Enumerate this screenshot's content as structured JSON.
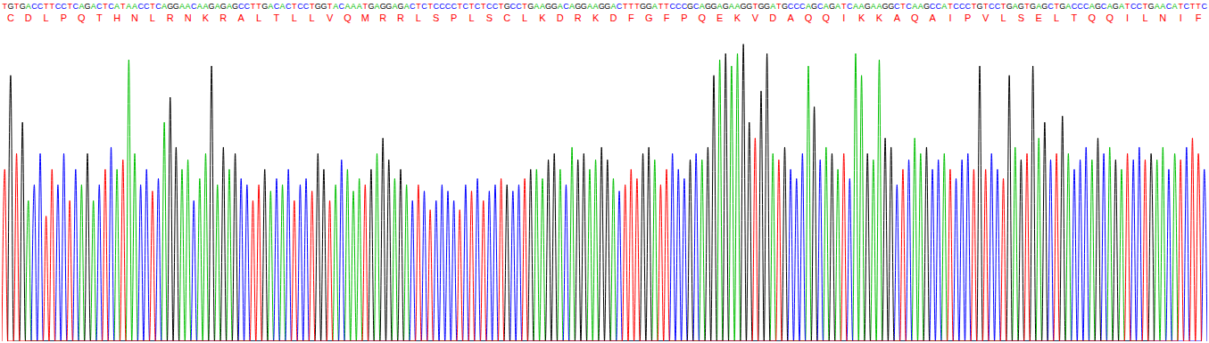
{
  "chart_data": {
    "type": "chromatogram",
    "sequence": "TGTGACCTTCCTCAGACTCATAACCTCAGGAACAAGAGAGCCTTGACACTCCTGGTACAAATGAGGAGACTCTCCCCTCTCTCCTGCCTGAAGGACAGGAAGGACTTTGGATTCCCGCAGGAGAAGGTGGATGCCCAGCAGATCAAGAAGGCTCAAGCCATCCCTGTCCTGAGTGAGCTGACCCAGCAGATCCTGAACATCTTC",
    "translation": [
      "C",
      "D",
      "L",
      "P",
      "Q",
      "T",
      "H",
      "N",
      "L",
      "R",
      "N",
      "K",
      "R",
      "A",
      "L",
      "T",
      "L",
      "L",
      "V",
      "Q",
      "M",
      "R",
      "R",
      "L",
      "S",
      "P",
      "L",
      "S",
      "C",
      "L",
      "K",
      "D",
      "R",
      "K",
      "D",
      "F",
      "G",
      "F",
      "P",
      "Q",
      "E",
      "K",
      "V",
      "D",
      "A",
      "Q",
      "Q",
      "I",
      "K",
      "K",
      "A",
      "Q",
      "A",
      "I",
      "P",
      "V",
      "L",
      "S",
      "E",
      "L",
      "T",
      "Q",
      "Q",
      "I",
      "L",
      "N",
      "I",
      "F"
    ],
    "values": [
      55,
      85,
      60,
      70,
      45,
      50,
      60,
      40,
      55,
      50,
      60,
      45,
      55,
      50,
      60,
      45,
      50,
      55,
      62,
      55,
      58,
      90,
      60,
      50,
      55,
      48,
      52,
      70,
      78,
      62,
      55,
      58,
      45,
      52,
      60,
      88,
      50,
      62,
      55,
      60,
      52,
      50,
      45,
      50,
      55,
      48,
      52,
      50,
      55,
      45,
      50,
      52,
      48,
      60,
      55,
      45,
      50,
      58,
      55,
      48,
      52,
      50,
      55,
      60,
      65,
      58,
      52,
      55,
      50,
      45,
      50,
      48,
      42,
      45,
      50,
      48,
      45,
      42,
      50,
      48,
      52,
      45,
      48,
      50,
      52,
      50,
      48,
      50,
      52,
      55,
      55,
      52,
      58,
      60,
      55,
      50,
      62,
      58,
      60,
      55,
      58,
      62,
      58,
      52,
      48,
      50,
      55,
      52,
      60,
      62,
      58,
      50,
      55,
      60,
      55,
      52,
      58,
      60,
      58,
      62,
      85,
      90,
      92,
      88,
      92,
      95,
      70,
      65,
      80,
      92,
      60,
      58,
      62,
      55,
      52,
      60,
      88,
      75,
      58,
      62,
      60,
      55,
      60,
      52,
      92,
      85,
      60,
      58,
      90,
      65,
      62,
      50,
      55,
      58,
      65,
      60,
      62,
      55,
      58,
      60,
      55,
      52,
      58,
      60,
      55,
      88,
      55,
      60,
      55,
      52,
      85,
      62,
      58,
      60,
      88,
      65,
      70,
      58,
      60,
      72,
      60,
      55,
      58,
      62,
      58,
      65,
      60,
      62,
      58,
      55,
      60,
      58,
      62,
      58,
      60,
      58,
      62,
      55,
      60,
      58,
      62,
      65,
      60,
      55
    ],
    "series": [
      {
        "name": "A",
        "color": "#00c000"
      },
      {
        "name": "C",
        "color": "#0000ff"
      },
      {
        "name": "G",
        "color": "#000000"
      },
      {
        "name": "T",
        "color": "#ff0000"
      }
    ],
    "ylim": [
      0,
      100
    ],
    "tick_labels": false
  }
}
